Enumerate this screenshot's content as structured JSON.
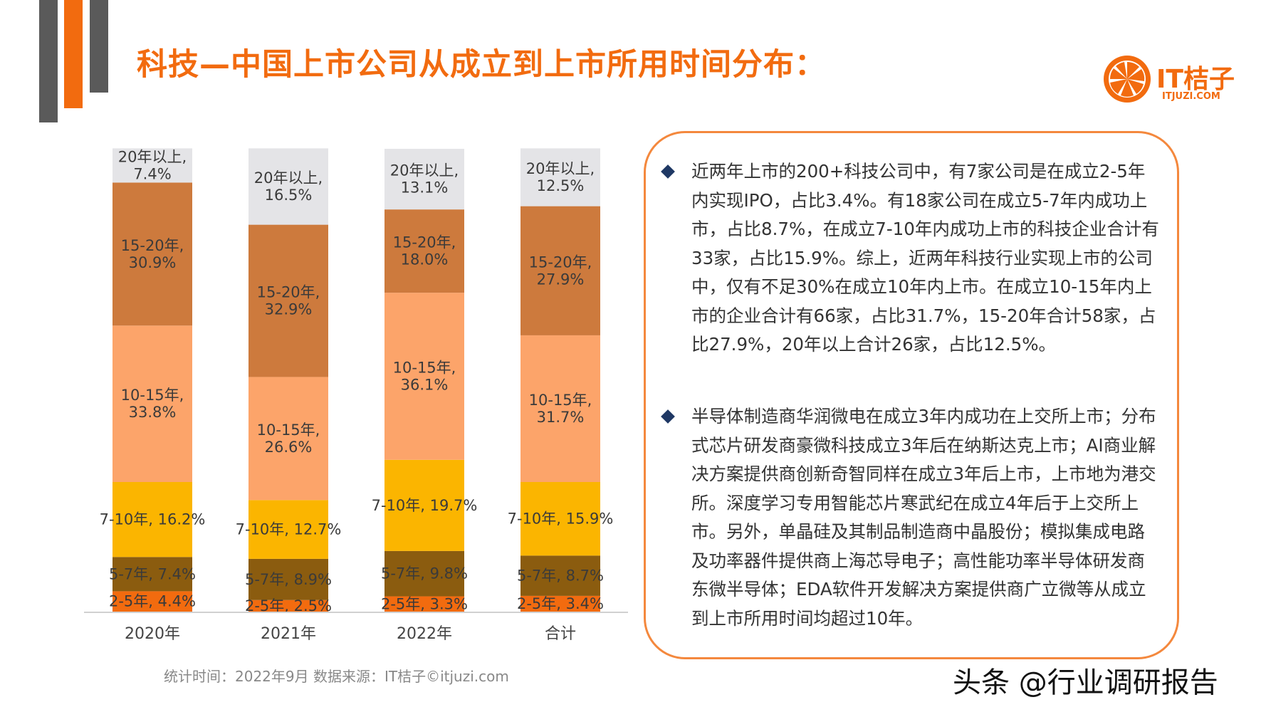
{
  "title": "科技—中国上市公司从成立到上市所用时间分布：",
  "logo": {
    "text": "IT桔子",
    "sub": "ITJUZI.COM"
  },
  "chart_data": {
    "type": "bar",
    "stacked": true,
    "percent": true,
    "categories": [
      "2020年",
      "2021年",
      "2022年",
      "合计"
    ],
    "series": [
      {
        "name": "2-5年",
        "color": "#f26b0f",
        "values": [
          4.4,
          2.5,
          3.3,
          3.4
        ],
        "labels": [
          "2-5年, 4.4%",
          "2-5年, 2.5%",
          "2-5年, 3.3%",
          "2-5年, 3.4%"
        ]
      },
      {
        "name": "5-7年",
        "color": "#8b5c0f",
        "values": [
          7.4,
          8.9,
          9.8,
          8.7
        ],
        "labels": [
          "5-7年, 7.4%",
          "5-7年, 8.9%",
          "5-7年, 9.8%",
          "5-7年, 8.7%"
        ]
      },
      {
        "name": "7-10年",
        "color": "#fbb500",
        "values": [
          16.2,
          12.7,
          19.7,
          15.9
        ],
        "labels": [
          "7-10年, 16.2%",
          "7-10年, 12.7%",
          "7-10年, 19.7%",
          "7-10年, 15.9%"
        ]
      },
      {
        "name": "10-15年",
        "color": "#fca46a",
        "values": [
          33.8,
          26.6,
          36.1,
          31.7
        ],
        "labels": [
          "10-15年,|33.8%",
          "10-15年,|26.6%",
          "10-15年,|36.1%",
          "10-15年,|31.7%"
        ]
      },
      {
        "name": "15-20年",
        "color": "#cd7a3d",
        "values": [
          30.9,
          32.9,
          18.0,
          27.9
        ],
        "labels": [
          "15-20年,|30.9%",
          "15-20年,|32.9%",
          "15-20年,|18.0%",
          "15-20年,|27.9%"
        ]
      },
      {
        "name": "20年以上",
        "color": "#e4e4e7",
        "values": [
          7.4,
          16.5,
          13.1,
          12.5
        ],
        "labels": [
          "20年以上,|7.4%",
          "20年以上,|16.5%",
          "20年以上,|13.1%",
          "20年以上,|12.5%"
        ]
      }
    ],
    "ylim": [
      0,
      100
    ]
  },
  "source": "统计时间：2022年9月  数据来源：IT桔子©itjuzi.com",
  "notes": {
    "p1": "近两年上市的200+科技公司中，有7家公司是在成立2-5年内实现IPO，占比3.4%。有18家公司在成立5-7年内成功上市，占比8.7%，在成立7-10年内成功上市的科技企业合计有33家，占比15.9%。综上，近两年科技行业实现上市的公司中，仅有不足30%在成立10年内上市。在成立10-15年内上市的企业合计有66家，占比31.7%，15-20年合计58家，占比27.9%，20年以上合计26家，占比12.5%。",
    "p2": "半导体制造商华润微电在成立3年内成功在上交所上市；分布式芯片研发商豪微科技成立3年后在纳斯达克上市；AI商业解决方案提供商创新奇智同样在成立3年后上市，上市地为港交所。深度学习专用智能芯片寒武纪在成立4年后于上交所上市。另外，单晶硅及其制品制造商中晶股份；模拟集成电路及功率器件提供商上海芯导电子；高性能功率半导体研发商东微半导体；EDA软件开发解决方案提供商广立微等从成立到上市所用时间均超过10年。"
  },
  "watermark": "头条 @行业调研报告"
}
